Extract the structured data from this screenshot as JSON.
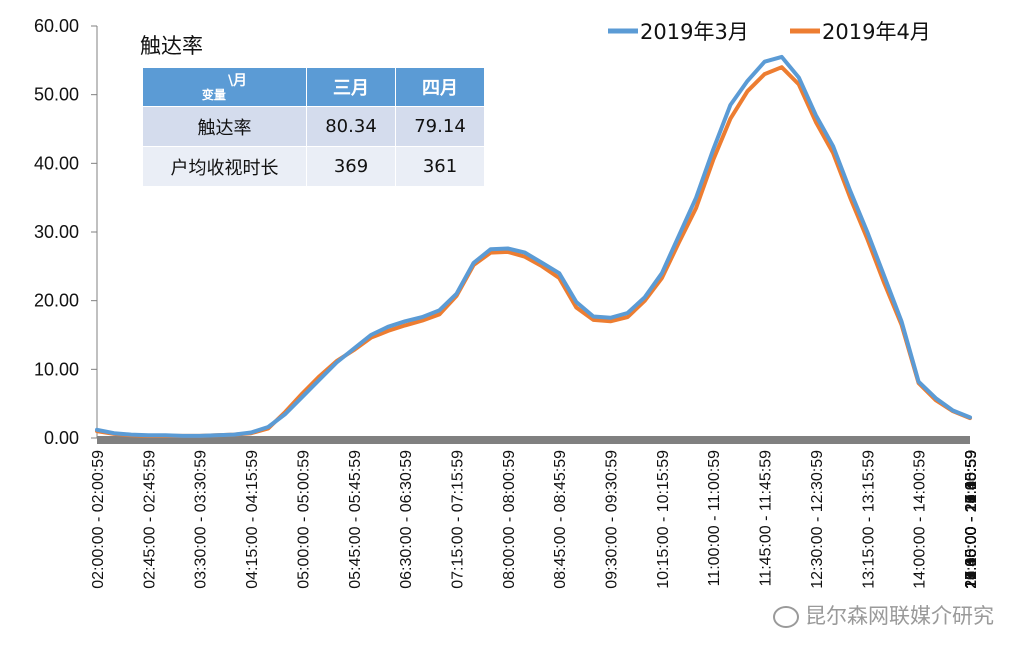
{
  "chart_data": {
    "type": "line",
    "title": "触达率",
    "ylim": [
      0,
      60
    ],
    "yticks": [
      "0.00",
      "10.00",
      "20.00",
      "30.00",
      "40.00",
      "50.00",
      "60.00"
    ],
    "x_tick_labels": [
      "02:00:00 - 02:00:59",
      "02:45:00 - 02:45:59",
      "03:30:00 - 03:30:59",
      "04:15:00 - 04:15:59",
      "05:00:00 - 05:00:59",
      "05:45:00 - 05:45:59",
      "06:30:00 - 06:30:59",
      "07:15:00 - 07:15:59",
      "08:00:00 - 08:00:59",
      "08:45:00 - 08:45:59",
      "09:30:00 - 09:30:59",
      "10:15:00 - 10:15:59",
      "11:00:00 - 11:00:59",
      "11:45:00 - 11:45:59",
      "12:30:00 - 12:30:59",
      "13:15:00 - 13:15:59",
      "14:00:00 - 14:00:59",
      "14:45:00 - 14:45:59",
      "15:30:00 - 15:30:59",
      "16:15:00 - 16:15:59",
      "17:00:00 - 17:00:59",
      "17:45:00 - 17:45:59",
      "18:30:00 - 18:30:59",
      "19:15:00 - 19:15:59",
      "20:00:00 - 20:00:59",
      "20:45:00 - 20:45:59",
      "21:30:00 - 21:30:59",
      "22:15:00 - 22:15:59",
      "23:00:00 - 23:00:59",
      "23:45:00 - 23:45:59",
      "24:30:00 - 24:30:59",
      "25:15:00 - 25:15:59"
    ],
    "x_tick_step": 3,
    "grid": false,
    "legend_position": "top-right",
    "series": [
      {
        "name": "2019年3月",
        "color": "#5b9bd5",
        "values": [
          1.2,
          0.7,
          0.5,
          0.4,
          0.4,
          0.3,
          0.3,
          0.4,
          0.5,
          0.8,
          1.6,
          3.5,
          6.0,
          8.5,
          11.0,
          13.0,
          15.0,
          16.2,
          17.0,
          17.6,
          18.6,
          21.0,
          25.5,
          27.5,
          27.6,
          27.0,
          25.5,
          24.0,
          19.8,
          17.7,
          17.5,
          18.2,
          20.5,
          24.0,
          29.5,
          35.0,
          42.0,
          48.5,
          52.0,
          54.8,
          55.5,
          52.5,
          47.0,
          42.5,
          36.0,
          30.0,
          23.5,
          17.0,
          8.2,
          5.8,
          4.0,
          3.0
        ]
      },
      {
        "name": "2019年4月",
        "color": "#ed7d31",
        "values": [
          1.0,
          0.6,
          0.4,
          0.3,
          0.3,
          0.3,
          0.3,
          0.4,
          0.5,
          0.7,
          1.4,
          3.8,
          6.5,
          9.0,
          11.2,
          12.8,
          14.6,
          15.6,
          16.4,
          17.1,
          18.0,
          20.7,
          25.2,
          27.0,
          27.1,
          26.4,
          25.0,
          23.3,
          19.0,
          17.2,
          17.0,
          17.6,
          20.0,
          23.3,
          28.5,
          33.5,
          40.5,
          46.5,
          50.5,
          53.0,
          54.0,
          51.5,
          46.0,
          41.5,
          35.0,
          29.0,
          22.5,
          16.5,
          8.0,
          5.5,
          3.9,
          2.9
        ]
      }
    ]
  },
  "table": {
    "corner_left": "变量",
    "corner_right": "\\月",
    "col1": "三月",
    "col2": "四月",
    "rows": [
      {
        "label": "触达率",
        "v1": "80.34",
        "v2": "79.14"
      },
      {
        "label": "户均收视时长",
        "v1": "369",
        "v2": "361"
      }
    ]
  },
  "watermark": "昆尔森网联媒介研究"
}
